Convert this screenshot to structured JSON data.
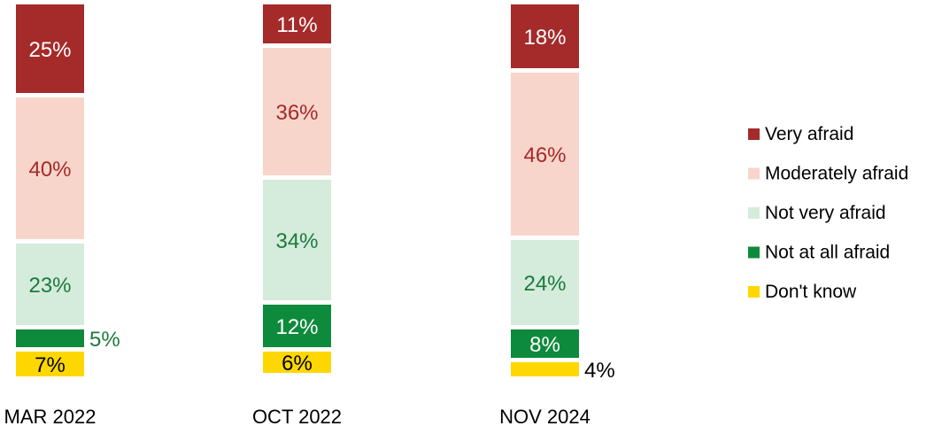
{
  "chart_data": {
    "type": "bar",
    "stacked": true,
    "categories": [
      "MAR 2022",
      "OCT 2022",
      "NOV 2024"
    ],
    "series": [
      {
        "name": "Very afraid",
        "color": "#A52A2A",
        "label_color": "#ffffff",
        "values": [
          25,
          11,
          18
        ],
        "labels": [
          "25%",
          "11%",
          "18%"
        ]
      },
      {
        "name": "Moderately afraid",
        "color": "#F8D5CB",
        "label_color": "#A52A2A",
        "values": [
          40,
          36,
          46
        ],
        "labels": [
          "40%",
          "36%",
          "46%"
        ]
      },
      {
        "name": "Not very afraid",
        "color": "#D5EBDB",
        "label_color": "#1B7A3E",
        "values": [
          23,
          34,
          24
        ],
        "labels": [
          "23%",
          "34%",
          "24%"
        ]
      },
      {
        "name": "Not at all afraid",
        "color": "#0E8A3C",
        "label_color": "#ffffff",
        "outside_label_color": "#1B7A3E",
        "values": [
          5,
          12,
          8
        ],
        "labels": [
          "5%",
          "12%",
          "8%"
        ]
      },
      {
        "name": "Don't know",
        "color": "#FFD700",
        "label_color": "#000000",
        "outside_label_color": "#000000",
        "values": [
          7,
          6,
          4
        ],
        "labels": [
          "7%",
          "6%",
          "4%"
        ]
      }
    ],
    "legend_position": "right",
    "grid": false
  }
}
